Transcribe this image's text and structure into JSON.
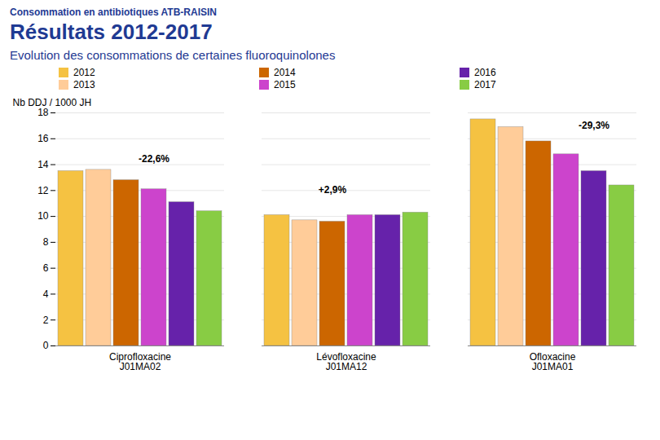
{
  "chart_data": {
    "type": "bar",
    "supertitle": "Consommation en antibiotiques ATB-RAISIN",
    "title": "Résultats 2012-2017",
    "subtitle": "Evolution des consommations de certaines fluoroquinolones",
    "categories": [
      "Ciprofloxacine\nJ01MA02",
      "Lévofloxacine\nJ01MA12",
      "Ofloxacine\nJ01MA01"
    ],
    "series": [
      {
        "name": "2012",
        "color": "#F5C242",
        "values": [
          13.5,
          10.1,
          17.5
        ]
      },
      {
        "name": "2013",
        "color": "#FFCC99",
        "values": [
          13.6,
          9.7,
          16.9
        ]
      },
      {
        "name": "2014",
        "color": "#CC6600",
        "values": [
          12.8,
          9.6,
          15.8
        ]
      },
      {
        "name": "2015",
        "color": "#CC44CC",
        "values": [
          12.1,
          10.1,
          14.8
        ]
      },
      {
        "name": "2016",
        "color": "#6622AA",
        "values": [
          11.1,
          10.1,
          13.5
        ]
      },
      {
        "name": "2017",
        "color": "#88CC44",
        "values": [
          10.4,
          10.3,
          12.4
        ]
      }
    ],
    "annotations": [
      {
        "text": "-22,6%",
        "category": "Ciprofloxacine\nJ01MA02",
        "series": "2015",
        "y": 14.2
      },
      {
        "text": "+2,9%",
        "category": "Lévofloxacine\nJ01MA12",
        "series": "2014",
        "y": 11.8
      },
      {
        "text": "-29,3%",
        "category": "Ofloxacine\nJ01MA01",
        "series": "2016",
        "y": 16.8
      }
    ],
    "ylabel": "Nb DDJ / 1000 JH",
    "ylim": [
      0,
      18
    ],
    "yticks": [
      0,
      2,
      4,
      6,
      8,
      10,
      12,
      14,
      16,
      18
    ],
    "grid": true,
    "legend": "upper center"
  }
}
